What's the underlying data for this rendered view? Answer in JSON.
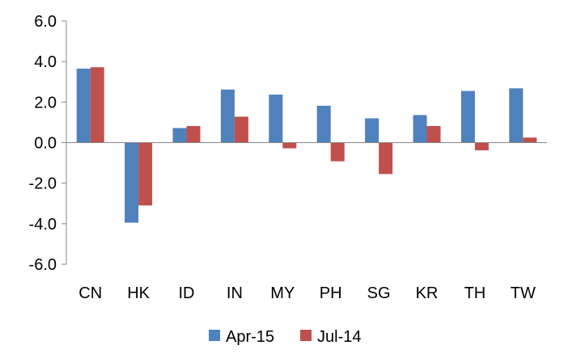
{
  "chart_data": {
    "type": "bar",
    "title": "",
    "xlabel": "",
    "ylabel": "",
    "categories": [
      "CN",
      "HK",
      "ID",
      "IN",
      "MY",
      "PH",
      "SG",
      "KR",
      "TH",
      "TW"
    ],
    "series": [
      {
        "name": "Apr-15",
        "color": "#4F81BD",
        "values": [
          3.65,
          -3.95,
          0.72,
          2.62,
          2.37,
          1.82,
          1.2,
          1.36,
          2.55,
          2.68
        ]
      },
      {
        "name": "Jul-14",
        "color": "#C0504D",
        "values": [
          3.72,
          -3.1,
          0.82,
          1.28,
          -0.28,
          -0.92,
          -1.55,
          0.82,
          -0.38,
          0.25
        ]
      }
    ],
    "ylim": [
      -6,
      6
    ],
    "yticks": [
      "-6.0",
      "-4.0",
      "-2.0",
      "0.0",
      "2.0",
      "4.0",
      "6.0"
    ],
    "grid": false,
    "legend_position": "bottom"
  }
}
